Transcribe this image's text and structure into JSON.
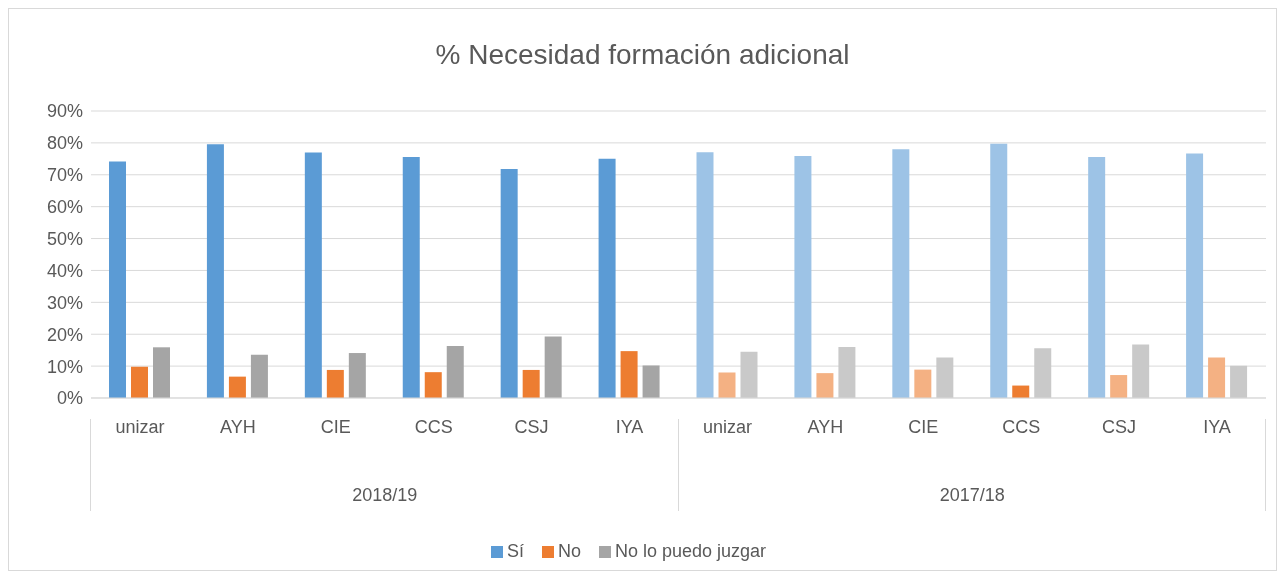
{
  "chart_data": {
    "type": "bar",
    "title": "% Necesidad formación adicional",
    "categories": [
      "unizar",
      "AYH",
      "CIE",
      "CCS",
      "CSJ",
      "IYA",
      "unizar",
      "AYH",
      "CIE",
      "CCS",
      "CSJ",
      "IYA"
    ],
    "series": [
      {
        "name": "Sí",
        "color": "#5b9bd5",
        "colors": [
          "#5b9bd5",
          "#5b9bd5",
          "#5b9bd5",
          "#5b9bd5",
          "#5b9bd5",
          "#5b9bd5",
          "#9dc3e6",
          "#9dc3e6",
          "#9dc3e6",
          "#9dc3e6",
          "#9dc3e6",
          "#9dc3e6"
        ],
        "values": [
          74.2,
          79.6,
          77.0,
          75.6,
          71.8,
          75.0,
          77.1,
          75.9,
          78.0,
          79.7,
          75.6,
          76.7
        ]
      },
      {
        "name": "No",
        "color": "#ed7d31",
        "colors": [
          "#ed7d31",
          "#ed7d31",
          "#ed7d31",
          "#ed7d31",
          "#ed7d31",
          "#ed7d31",
          "#f4b183",
          "#f4b183",
          "#f4b183",
          "#ed7d31",
          "#f4b183",
          "#f4b183"
        ],
        "values": [
          9.8,
          6.7,
          8.8,
          8.1,
          8.8,
          14.7,
          8.0,
          7.8,
          8.9,
          3.9,
          7.2,
          12.7
        ]
      },
      {
        "name": "No lo puedo juzgar",
        "color": "#a5a5a5",
        "colors": [
          "#a5a5a5",
          "#a5a5a5",
          "#a5a5a5",
          "#a5a5a5",
          "#a5a5a5",
          "#a5a5a5",
          "#c9c9c9",
          "#c9c9c9",
          "#c9c9c9",
          "#c9c9c9",
          "#c9c9c9",
          "#c9c9c9"
        ],
        "values": [
          15.9,
          13.6,
          14.1,
          16.3,
          19.3,
          10.2,
          14.5,
          16.0,
          12.7,
          15.6,
          16.8,
          10.1
        ]
      }
    ],
    "annotations": [
      "2018/19",
      "2017/18"
    ],
    "ylim": [
      0,
      90
    ],
    "yticks": [
      {
        "value": 0,
        "label": "0%"
      },
      {
        "value": 10,
        "label": "10%"
      },
      {
        "value": 20,
        "label": "20%"
      },
      {
        "value": 30,
        "label": "30%"
      },
      {
        "value": 40,
        "label": "40%"
      },
      {
        "value": 50,
        "label": "50%"
      },
      {
        "value": 60,
        "label": "60%"
      },
      {
        "value": 70,
        "label": "70%"
      },
      {
        "value": 80,
        "label": "80%"
      },
      {
        "value": 90,
        "label": "90%"
      }
    ],
    "grid": "y",
    "legend": "bottom"
  }
}
